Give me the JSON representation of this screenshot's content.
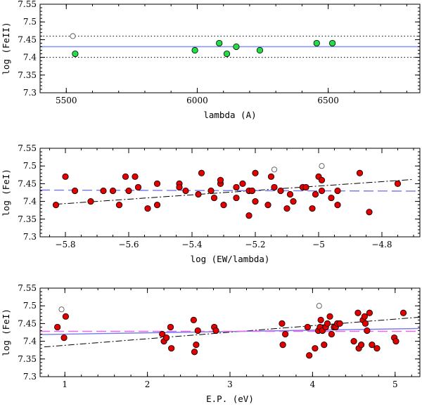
{
  "chart_data": [
    {
      "type": "scatter",
      "xlabel": "lambda (A)",
      "ylabel": "log (FeII)",
      "xlim": [
        5400,
        6850
      ],
      "ylim": [
        7.3,
        7.55
      ],
      "xticks": [
        5500,
        6000,
        6500
      ],
      "xtick_labels": [
        "5500",
        "6000",
        "6500"
      ],
      "xminor": 100,
      "yticks": [
        7.3,
        7.35,
        7.4,
        7.45,
        7.5,
        7.55
      ],
      "ytick_labels": [
        "7.3",
        "7.35",
        "7.4",
        "7.45",
        "7.5",
        "7.55"
      ],
      "yminor": 0.01,
      "colors": {
        "filled": "#22dd44",
        "outlier_edge": "#555555",
        "mean_line": "#8899ee",
        "bound_line": "#000000"
      },
      "series": [
        {
          "name": "FeII lines",
          "style": "filled",
          "points": [
            [
              5534,
              7.41
            ],
            [
              5991,
              7.42
            ],
            [
              6084,
              7.44
            ],
            [
              6113,
              7.41
            ],
            [
              6149,
              7.43
            ],
            [
              6239,
              7.42
            ],
            [
              6456,
              7.44
            ],
            [
              6516,
              7.44
            ]
          ]
        },
        {
          "name": "rejected",
          "style": "open",
          "points": [
            [
              5525,
              7.46
            ]
          ]
        }
      ],
      "hlines": [
        {
          "name": "mean",
          "y": 7.43,
          "style": "solid"
        },
        {
          "name": "upper-bound",
          "y": 7.46,
          "style": "dotted"
        },
        {
          "name": "lower-bound",
          "y": 7.4,
          "style": "dotted"
        }
      ]
    },
    {
      "type": "scatter",
      "xlabel": "log (EW/lambda)",
      "ylabel": "log (FeI)",
      "xlim": [
        -5.88,
        -4.68
      ],
      "ylim": [
        7.3,
        7.55
      ],
      "xticks": [
        -5.8,
        -5.6,
        -5.4,
        -5.2,
        -5.0,
        -4.8
      ],
      "xtick_labels": [
        "−5.8",
        "−5.6",
        "−5.4",
        "−5.2",
        "−5",
        "−4.8"
      ],
      "xminor": 0.05,
      "yticks": [
        7.3,
        7.35,
        7.4,
        7.45,
        7.5,
        7.55
      ],
      "ytick_labels": [
        "7.3",
        "7.35",
        "7.4",
        "7.45",
        "7.5",
        "7.55"
      ],
      "yminor": 0.01,
      "colors": {
        "filled": "#e00000",
        "outlier_edge": "#555555",
        "fit_line": "#000000",
        "mean_line": "#7777ee"
      },
      "series": [
        {
          "name": "FeI lines",
          "style": "filled",
          "points": [
            [
              -5.83,
              7.39
            ],
            [
              -5.8,
              7.47
            ],
            [
              -5.77,
              7.43
            ],
            [
              -5.72,
              7.4
            ],
            [
              -5.68,
              7.43
            ],
            [
              -5.65,
              7.43
            ],
            [
              -5.63,
              7.39
            ],
            [
              -5.61,
              7.47
            ],
            [
              -5.6,
              7.43
            ],
            [
              -5.58,
              7.47
            ],
            [
              -5.57,
              7.44
            ],
            [
              -5.54,
              7.38
            ],
            [
              -5.51,
              7.45
            ],
            [
              -5.51,
              7.39
            ],
            [
              -5.44,
              7.45
            ],
            [
              -5.44,
              7.44
            ],
            [
              -5.42,
              7.43
            ],
            [
              -5.38,
              7.42
            ],
            [
              -5.37,
              7.48
            ],
            [
              -5.34,
              7.43
            ],
            [
              -5.33,
              7.41
            ],
            [
              -5.31,
              7.45
            ],
            [
              -5.31,
              7.46
            ],
            [
              -5.3,
              7.39
            ],
            [
              -5.26,
              7.44
            ],
            [
              -5.26,
              7.41
            ],
            [
              -5.24,
              7.45
            ],
            [
              -5.22,
              7.36
            ],
            [
              -5.22,
              7.43
            ],
            [
              -5.21,
              7.43
            ],
            [
              -5.2,
              7.48
            ],
            [
              -5.2,
              7.4
            ],
            [
              -5.16,
              7.39
            ],
            [
              -5.15,
              7.47
            ],
            [
              -5.14,
              7.44
            ],
            [
              -5.12,
              7.43
            ],
            [
              -5.1,
              7.38
            ],
            [
              -5.09,
              7.42
            ],
            [
              -5.08,
              7.4
            ],
            [
              -5.05,
              7.44
            ],
            [
              -5.04,
              7.44
            ],
            [
              -5.02,
              7.38
            ],
            [
              -5.01,
              7.42
            ],
            [
              -5.0,
              7.47
            ],
            [
              -4.99,
              7.43
            ],
            [
              -4.99,
              7.46
            ],
            [
              -4.96,
              7.41
            ],
            [
              -4.94,
              7.43
            ],
            [
              -4.94,
              7.39
            ],
            [
              -4.87,
              7.48
            ],
            [
              -4.84,
              7.37
            ],
            [
              -4.75,
              7.45
            ]
          ]
        },
        {
          "name": "rejected",
          "style": "open",
          "points": [
            [
              -5.14,
              7.49
            ],
            [
              -4.99,
              7.5
            ]
          ]
        }
      ],
      "lines": [
        {
          "name": "fit-line",
          "style": "dashdot",
          "from": [
            -5.83,
            7.392
          ],
          "to": [
            -4.7,
            7.462
          ]
        },
        {
          "name": "mean-line",
          "style": "dashed",
          "from": [
            -5.88,
            7.432
          ],
          "to": [
            -4.68,
            7.429
          ]
        }
      ]
    },
    {
      "type": "scatter",
      "xlabel": "E.P. (eV)",
      "ylabel": "log (FeI)",
      "xlim": [
        0.7,
        5.3
      ],
      "ylim": [
        7.3,
        7.55
      ],
      "xticks": [
        1,
        2,
        3,
        4,
        5
      ],
      "xtick_labels": [
        "1",
        "2",
        "3",
        "4",
        "5"
      ],
      "xminor": 0.2,
      "yticks": [
        7.3,
        7.35,
        7.4,
        7.45,
        7.5,
        7.55
      ],
      "ytick_labels": [
        "7.3",
        "7.35",
        "7.4",
        "7.45",
        "7.5",
        "7.55"
      ],
      "yminor": 0.01,
      "colors": {
        "filled": "#e00000",
        "outlier_edge": "#555555",
        "fit_line": "#000000",
        "mean_line": "#7777ee",
        "alt_line": "#ee66ee"
      },
      "series": [
        {
          "name": "FeI lines",
          "style": "filled",
          "points": [
            [
              0.91,
              7.44
            ],
            [
              0.99,
              7.41
            ],
            [
              1.01,
              7.47
            ],
            [
              2.18,
              7.42
            ],
            [
              2.2,
              7.4
            ],
            [
              2.23,
              7.41
            ],
            [
              2.28,
              7.44
            ],
            [
              2.29,
              7.38
            ],
            [
              2.56,
              7.46
            ],
            [
              2.57,
              7.37
            ],
            [
              2.59,
              7.39
            ],
            [
              2.61,
              7.43
            ],
            [
              2.81,
              7.44
            ],
            [
              2.83,
              7.43
            ],
            [
              3.63,
              7.45
            ],
            [
              3.64,
              7.39
            ],
            [
              3.67,
              7.42
            ],
            [
              3.94,
              7.44
            ],
            [
              3.96,
              7.36
            ],
            [
              4.03,
              7.38
            ],
            [
              4.07,
              7.43
            ],
            [
              4.09,
              7.44
            ],
            [
              4.1,
              7.46
            ],
            [
              4.12,
              7.43
            ],
            [
              4.14,
              7.39
            ],
            [
              4.16,
              7.44
            ],
            [
              4.18,
              7.45
            ],
            [
              4.21,
              7.47
            ],
            [
              4.23,
              7.42
            ],
            [
              4.26,
              7.44
            ],
            [
              4.28,
              7.44
            ],
            [
              4.3,
              7.45
            ],
            [
              4.33,
              7.45
            ],
            [
              4.5,
              7.4
            ],
            [
              4.55,
              7.48
            ],
            [
              4.56,
              7.38
            ],
            [
              4.59,
              7.39
            ],
            [
              4.61,
              7.46
            ],
            [
              4.63,
              7.47
            ],
            [
              4.64,
              7.45
            ],
            [
              4.66,
              7.43
            ],
            [
              4.69,
              7.48
            ],
            [
              4.72,
              7.39
            ],
            [
              4.78,
              7.38
            ],
            [
              4.99,
              7.41
            ],
            [
              5.01,
              7.4
            ],
            [
              5.1,
              7.48
            ]
          ]
        },
        {
          "name": "rejected",
          "style": "open",
          "points": [
            [
              0.96,
              7.49
            ],
            [
              4.08,
              7.5
            ]
          ]
        }
      ],
      "lines": [
        {
          "name": "fit-line",
          "style": "dashdot",
          "from": [
            0.75,
            7.384
          ],
          "to": [
            5.3,
            7.468
          ]
        },
        {
          "name": "mean-line",
          "style": "solid",
          "from": [
            0.7,
            7.419
          ],
          "to": [
            5.3,
            7.436
          ]
        },
        {
          "name": "alt-mean-line",
          "style": "dashed",
          "from": [
            0.7,
            7.428
          ],
          "to": [
            5.3,
            7.428
          ]
        }
      ]
    }
  ]
}
